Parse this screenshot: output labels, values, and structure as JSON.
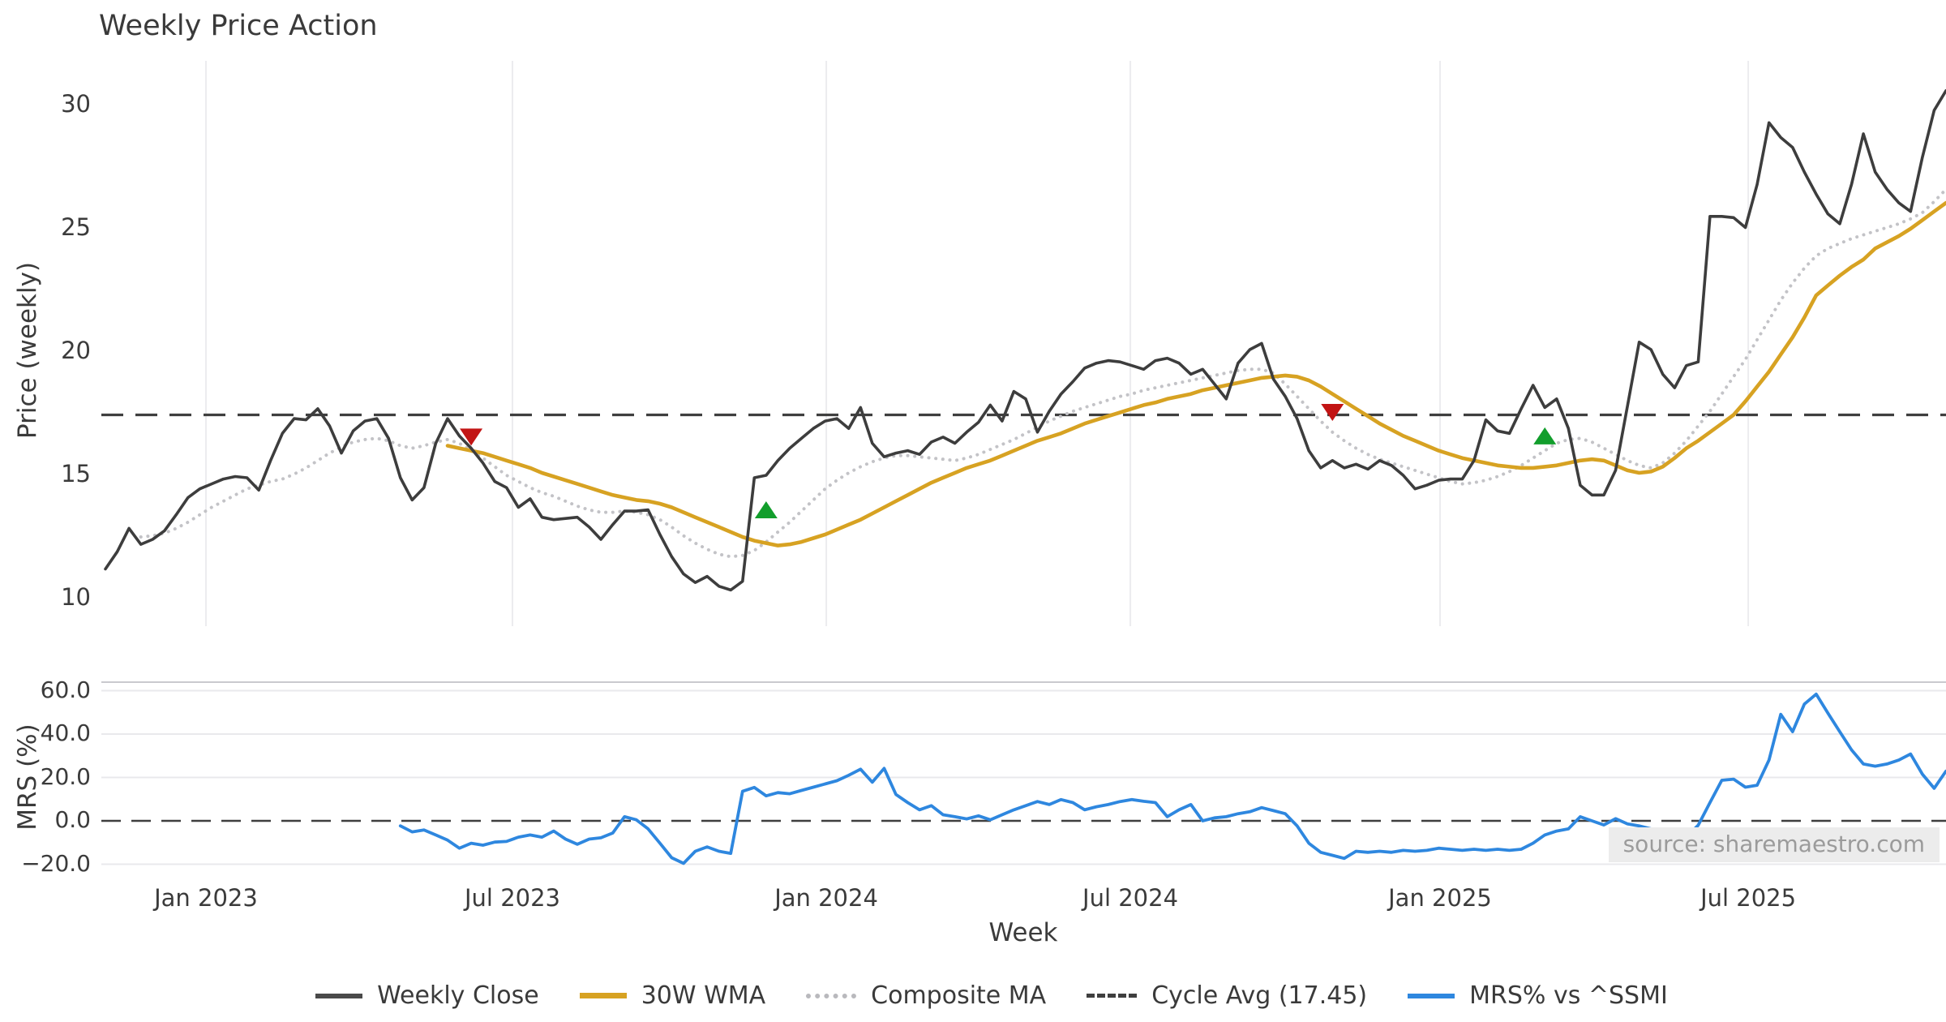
{
  "title": "Weekly Price Action",
  "source_note": "source: sharemaestro.com",
  "price_panel": {
    "ylabel": "Price (weekly)",
    "yticks": [
      {
        "label": "30",
        "value": 30
      },
      {
        "label": "25",
        "value": 25
      },
      {
        "label": "20",
        "value": 20
      },
      {
        "label": "15",
        "value": 15
      },
      {
        "label": "10",
        "value": 10
      }
    ]
  },
  "mrs_panel": {
    "ylabel": "MRS (%)",
    "yticks": [
      {
        "label": "60.0",
        "value": 60
      },
      {
        "label": "40.0",
        "value": 40
      },
      {
        "label": "20.0",
        "value": 20
      },
      {
        "label": "0.0",
        "value": 0
      },
      {
        "label": "−20.0",
        "value": -20
      }
    ]
  },
  "x_axis": {
    "label": "Week",
    "ticks": [
      {
        "label": "Jan 2023",
        "week": 8.52
      },
      {
        "label": "Jul 2023",
        "week": 34.5
      },
      {
        "label": "Jan 2024",
        "week": 61.1
      },
      {
        "label": "Jul 2024",
        "week": 86.87
      },
      {
        "label": "Jan 2025",
        "week": 113.12
      },
      {
        "label": "Jul 2025",
        "week": 139.24
      }
    ]
  },
  "legend": {
    "items": [
      {
        "label": "Weekly Close",
        "style": "solid",
        "color": "#4a4a4a"
      },
      {
        "label": "30W WMA",
        "style": "solid",
        "color": "#d7a222"
      },
      {
        "label": "Composite MA",
        "style": "dotted",
        "color": "#b9b9bd"
      },
      {
        "label": "Cycle Avg (17.45)",
        "style": "dashed",
        "color": "#3f3f3f"
      },
      {
        "label": "MRS% vs ^SSMI",
        "style": "solid",
        "color": "#2e87df"
      }
    ]
  },
  "colors": {
    "close": "#3d3d3d",
    "wma": "#d7a222",
    "composite": "#c3c3c7",
    "cycle": "#3f3f3f",
    "mrs": "#2e87df",
    "buy": "#129e2c",
    "sell": "#c21414",
    "grid": "#ececef",
    "spine": "#c9c9ce",
    "zero": "#3f3f3f"
  },
  "chart_data": {
    "type": "line",
    "x_unit": "week_index",
    "weeks_total": 156,
    "cycle_avg": 17.45,
    "panels": [
      {
        "name": "price",
        "ylabel": "Price (weekly)",
        "ylim": [
          8.9,
          31.8
        ],
        "series": [
          {
            "name": "Weekly Close",
            "style": "solid",
            "start_week": 0,
            "values": [
              11.2,
              11.9,
              12.85,
              12.2,
              12.4,
              12.75,
              13.4,
              14.1,
              14.45,
              14.65,
              14.85,
              14.95,
              14.9,
              14.4,
              15.6,
              16.7,
              17.3,
              17.25,
              17.7,
              17.0,
              15.9,
              16.8,
              17.2,
              17.3,
              16.5,
              14.9,
              14.0,
              14.5,
              16.3,
              17.3,
              16.6,
              16.1,
              15.5,
              14.75,
              14.5,
              13.7,
              14.05,
              13.3,
              13.2,
              13.25,
              13.3,
              12.9,
              12.4,
              13.0,
              13.55,
              13.55,
              13.6,
              12.6,
              11.7,
              11.0,
              10.65,
              10.9,
              10.5,
              10.35,
              10.7,
              14.9,
              15.0,
              15.6,
              16.1,
              16.5,
              16.9,
              17.2,
              17.3,
              16.9,
              17.75,
              16.3,
              15.75,
              15.9,
              16.0,
              15.85,
              16.35,
              16.55,
              16.3,
              16.75,
              17.15,
              17.85,
              17.2,
              18.4,
              18.1,
              16.75,
              17.6,
              18.3,
              18.8,
              19.35,
              19.55,
              19.65,
              19.6,
              19.45,
              19.3,
              19.65,
              19.75,
              19.55,
              19.1,
              19.3,
              18.7,
              18.1,
              19.55,
              20.1,
              20.35,
              18.9,
              18.2,
              17.3,
              16.0,
              15.3,
              15.6,
              15.3,
              15.45,
              15.25,
              15.6,
              15.4,
              15.0,
              14.45,
              14.6,
              14.8,
              14.85,
              14.85,
              15.6,
              17.25,
              16.8,
              16.7,
              17.7,
              18.65,
              17.75,
              18.1,
              16.9,
              14.6,
              14.2,
              14.2,
              15.2,
              17.8,
              20.4,
              20.1,
              19.1,
              18.55,
              19.45,
              19.6,
              25.5,
              25.5,
              25.45,
              25.05,
              26.8,
              29.3,
              28.7,
              28.3,
              27.3,
              26.4,
              25.6,
              25.2,
              26.8,
              28.85,
              27.3,
              26.6,
              26.05,
              25.7,
              27.9,
              29.8,
              30.6
            ]
          },
          {
            "name": "30W WMA",
            "style": "solid",
            "start_week": 29,
            "values": [
              16.2,
              16.1,
              16.0,
              15.9,
              15.75,
              15.6,
              15.45,
              15.3,
              15.1,
              14.95,
              14.8,
              14.65,
              14.5,
              14.35,
              14.2,
              14.1,
              14.0,
              13.95,
              13.85,
              13.7,
              13.5,
              13.3,
              13.1,
              12.9,
              12.7,
              12.5,
              12.35,
              12.25,
              12.15,
              12.2,
              12.3,
              12.45,
              12.6,
              12.8,
              13.0,
              13.2,
              13.45,
              13.7,
              13.95,
              14.2,
              14.45,
              14.7,
              14.9,
              15.1,
              15.3,
              15.45,
              15.6,
              15.8,
              16.0,
              16.2,
              16.4,
              16.55,
              16.7,
              16.9,
              17.1,
              17.25,
              17.4,
              17.55,
              17.7,
              17.85,
              17.95,
              18.1,
              18.2,
              18.3,
              18.45,
              18.55,
              18.65,
              18.75,
              18.85,
              18.95,
              19.0,
              19.05,
              19.0,
              18.85,
              18.6,
              18.3,
              18.0,
              17.7,
              17.4,
              17.1,
              16.85,
              16.6,
              16.4,
              16.2,
              16.0,
              15.85,
              15.7,
              15.6,
              15.5,
              15.4,
              15.35,
              15.3,
              15.3,
              15.35,
              15.4,
              15.5,
              15.6,
              15.65,
              15.6,
              15.4,
              15.2,
              15.1,
              15.15,
              15.35,
              15.7,
              16.1,
              16.4,
              16.75,
              17.1,
              17.45,
              18.0,
              18.6,
              19.2,
              19.9,
              20.6,
              21.4,
              22.3,
              22.7,
              23.1,
              23.45,
              23.75,
              24.2,
              24.45,
              24.7,
              25.0,
              25.35,
              25.7,
              26.05
            ]
          },
          {
            "name": "Composite MA",
            "style": "dotted",
            "start_week": 3,
            "values": [
              12.5,
              12.55,
              12.65,
              12.85,
              13.1,
              13.4,
              13.7,
              13.95,
              14.2,
              14.45,
              14.6,
              14.75,
              14.85,
              15.05,
              15.3,
              15.6,
              15.9,
              16.15,
              16.35,
              16.45,
              16.5,
              16.4,
              16.2,
              16.1,
              16.2,
              16.35,
              16.45,
              16.3,
              16.0,
              15.7,
              15.35,
              15.0,
              14.75,
              14.5,
              14.3,
              14.15,
              13.95,
              13.75,
              13.6,
              13.5,
              13.5,
              13.55,
              13.5,
              13.4,
              13.2,
              12.9,
              12.55,
              12.25,
              12.0,
              11.8,
              11.7,
              11.75,
              11.95,
              12.3,
              12.7,
              13.1,
              13.55,
              14.0,
              14.45,
              14.8,
              15.1,
              15.35,
              15.55,
              15.7,
              15.8,
              15.8,
              15.75,
              15.7,
              15.65,
              15.6,
              15.7,
              15.85,
              16.05,
              16.25,
              16.45,
              16.7,
              16.95,
              17.2,
              17.4,
              17.6,
              17.75,
              17.9,
              18.05,
              18.2,
              18.3,
              18.45,
              18.55,
              18.65,
              18.75,
              18.85,
              18.95,
              19.05,
              19.15,
              19.25,
              19.3,
              19.3,
              19.15,
              18.7,
              18.2,
              17.7,
              17.2,
              16.75,
              16.4,
              16.1,
              15.85,
              15.65,
              15.5,
              15.35,
              15.2,
              15.05,
              14.9,
              14.75,
              14.65,
              14.7,
              14.8,
              14.95,
              15.15,
              15.4,
              15.7,
              16.0,
              16.3,
              16.45,
              16.5,
              16.35,
              16.1,
              15.85,
              15.6,
              15.4,
              15.3,
              15.5,
              15.9,
              16.4,
              17.0,
              17.6,
              18.3,
              19.0,
              19.7,
              20.5,
              21.3,
              22.1,
              22.8,
              23.4,
              23.9,
              24.2,
              24.4,
              24.6,
              24.75,
              24.9,
              25.05,
              25.2,
              25.4,
              25.65,
              26.1,
              26.6
            ]
          },
          {
            "name": "Cycle Avg",
            "style": "dashed",
            "constant": 17.45
          }
        ],
        "signals": {
          "sell": [
            {
              "week": 31,
              "price": 16.55
            },
            {
              "week": 104,
              "price": 17.55
            }
          ],
          "buy": [
            {
              "week": 56,
              "price": 13.6
            },
            {
              "week": 122,
              "price": 16.6
            }
          ]
        }
      },
      {
        "name": "mrs",
        "ylabel": "MRS (%)",
        "ylim": [
          -24.7,
          65.0
        ],
        "zero_line": 0,
        "series": [
          {
            "name": "MRS% vs ^SSMI",
            "style": "solid",
            "start_week": 25,
            "values": [
              -2.3,
              -5.1,
              -4.2,
              -6.5,
              -8.9,
              -12.6,
              -10.3,
              -11.2,
              -9.8,
              -9.5,
              -7.5,
              -6.5,
              -7.5,
              -4.7,
              -8.4,
              -10.8,
              -8.4,
              -7.8,
              -5.6,
              1.9,
              0.5,
              -3.7,
              -10.3,
              -17.0,
              -19.6,
              -14.0,
              -12.0,
              -14.0,
              -15.0,
              13.6,
              15.4,
              11.5,
              13.0,
              12.5,
              14.0,
              15.5,
              17.0,
              18.5,
              21.0,
              23.8,
              17.8,
              24.2,
              12.2,
              8.4,
              5.1,
              7.0,
              2.8,
              1.9,
              0.9,
              2.3,
              0.5,
              2.8,
              5.1,
              7.0,
              8.9,
              7.5,
              9.8,
              8.4,
              5.1,
              6.5,
              7.5,
              8.9,
              9.8,
              9.0,
              8.4,
              1.9,
              5.1,
              7.5,
              0.0,
              1.4,
              1.9,
              3.3,
              4.2,
              6.1,
              4.7,
              3.3,
              -2.3,
              -10.3,
              -14.5,
              -15.9,
              -17.3,
              -14.0,
              -14.5,
              -14.0,
              -14.5,
              -13.6,
              -14.0,
              -13.6,
              -12.6,
              -13.1,
              -13.6,
              -13.1,
              -13.6,
              -13.1,
              -13.6,
              -13.1,
              -10.3,
              -6.5,
              -4.7,
              -3.7,
              1.9,
              0.0,
              -1.9,
              1.0,
              -1.4,
              -2.3,
              -3.7,
              -6.5,
              -9.3,
              -7.5,
              -2.0,
              8.4,
              18.7,
              19.2,
              15.5,
              16.4,
              28.0,
              49.1,
              41.1,
              53.8,
              58.4,
              49.6,
              41.1,
              32.7,
              26.2,
              25.2,
              26.2,
              28.0,
              30.8,
              21.5,
              15.0,
              22.9
            ]
          }
        ]
      }
    ]
  }
}
